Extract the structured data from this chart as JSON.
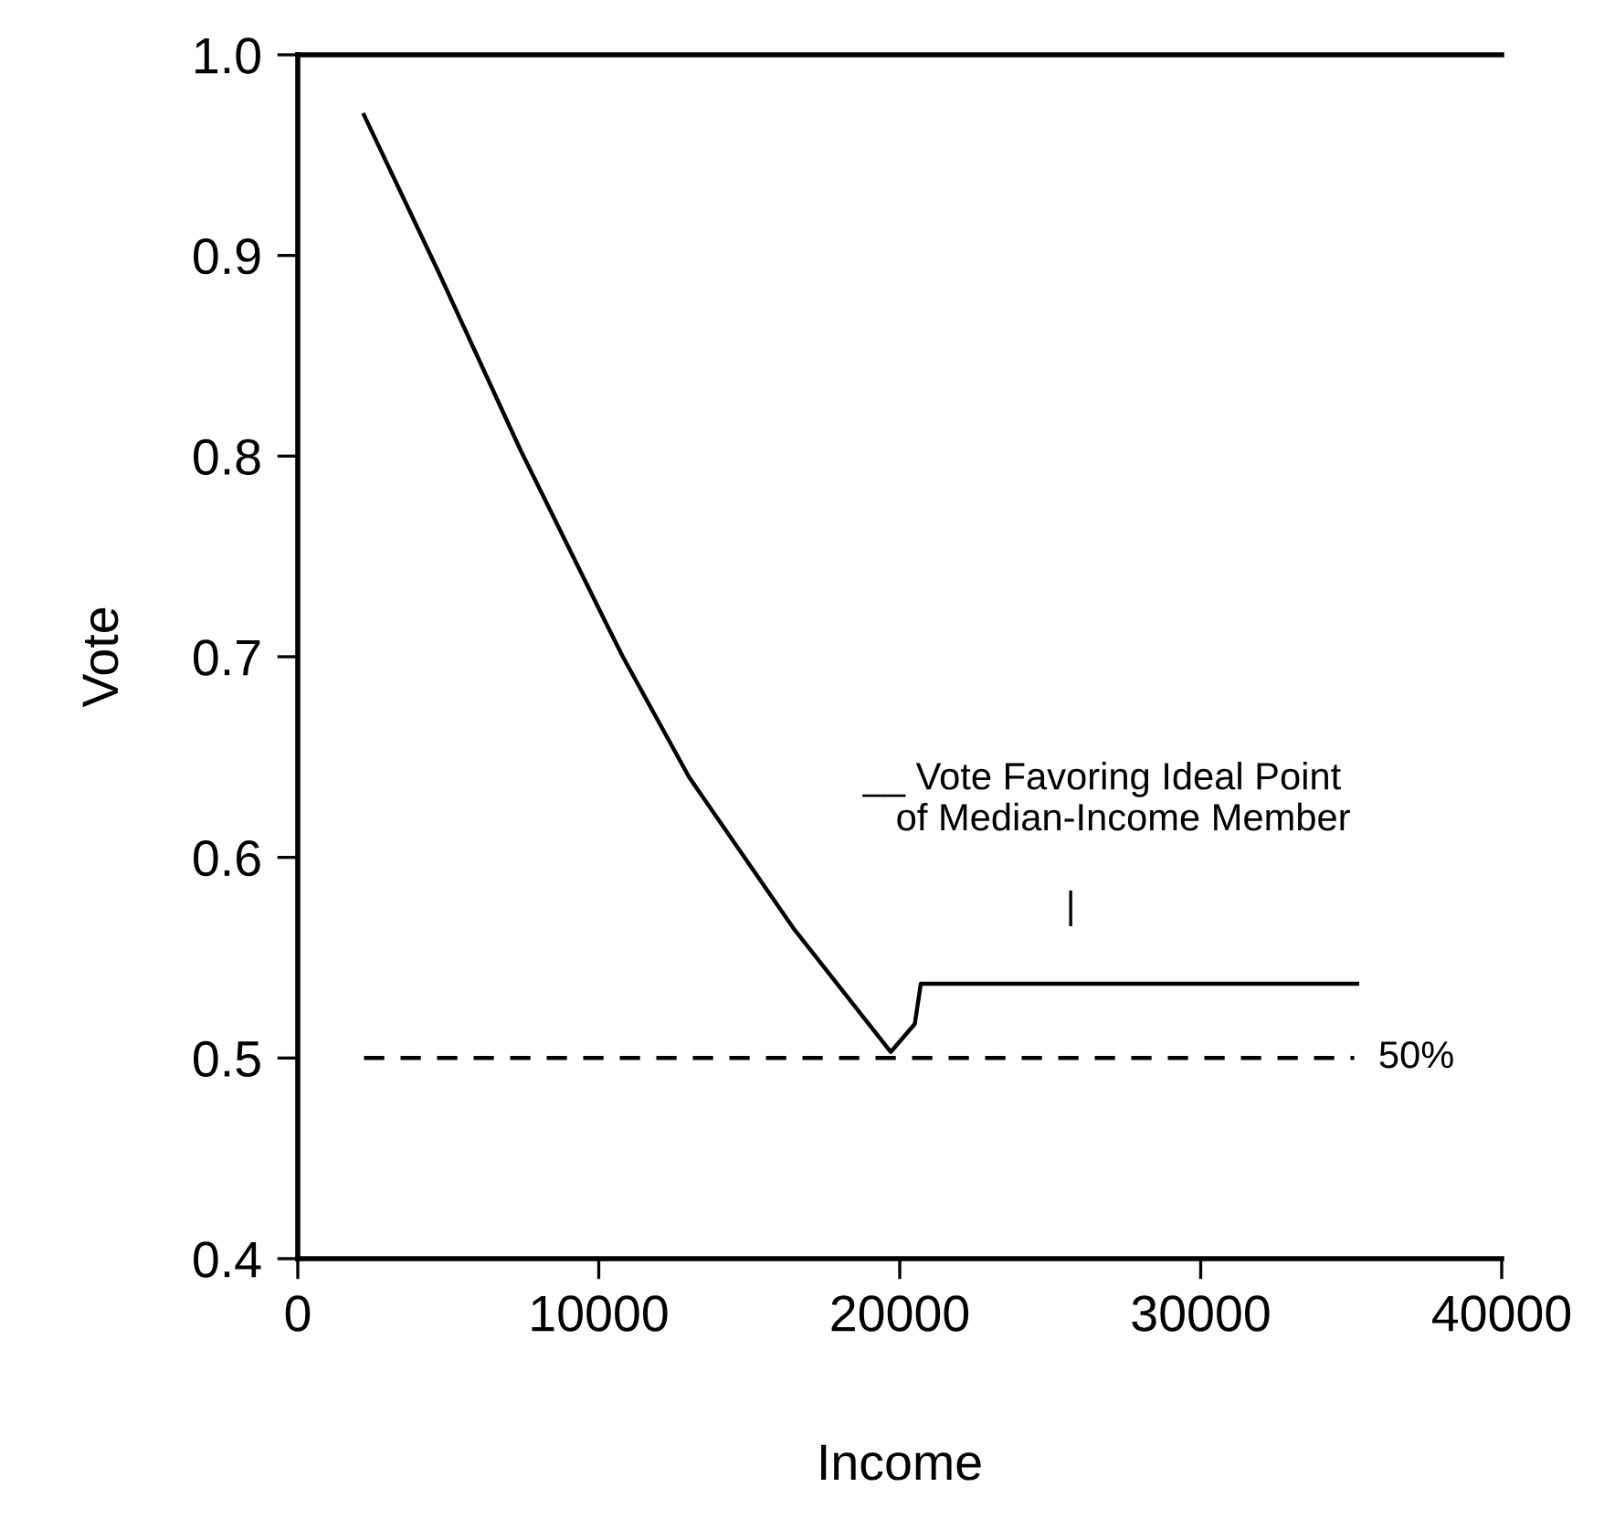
{
  "chart_data": {
    "type": "line",
    "xlabel": "Income",
    "ylabel": "Vote",
    "series": [
      {
        "color": "#000000",
        "line_style": "solid",
        "x": [
          2200,
          4700,
          7400,
          10200,
          10800,
          13000,
          16500,
          19700,
          20500,
          20700,
          35200
        ],
        "values": [
          0.97,
          0.891,
          0.803,
          0.718,
          0.7,
          0.64,
          0.564,
          0.503,
          0.517,
          0.537,
          0.537
        ]
      },
      {
        "name": "50%",
        "color": "#000000",
        "line_style": "dashed",
        "x": [
          2200,
          35100
        ],
        "values": [
          0.5,
          0.5
        ]
      }
    ],
    "annotations": [
      "__ Vote Favoring Ideal Point\n    of Median-Income Member",
      "|"
    ],
    "xlim": [
      0,
      40000
    ],
    "ylim": [
      0.4,
      1.0
    ],
    "xticks": [
      0,
      10000,
      20000,
      30000,
      40000
    ],
    "yticks": [
      {
        "value": 0.4,
        "label": "0.4"
      },
      {
        "value": 0.5,
        "label": "0.5"
      },
      {
        "value": 0.6,
        "label": "0.6"
      },
      {
        "value": 0.7,
        "label": "0.7"
      },
      {
        "value": 0.8,
        "label": "0.8"
      },
      {
        "value": 0.9,
        "label": "0.9"
      },
      {
        "value": 1.0,
        "label": "1.0"
      }
    ],
    "grid": false,
    "legend": false
  }
}
